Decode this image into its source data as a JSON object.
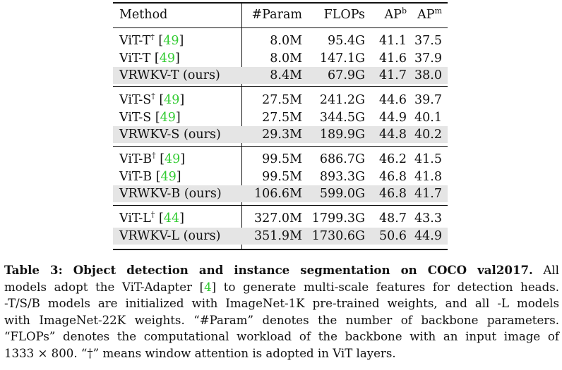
{
  "header": {
    "method": "Method",
    "param": "#Param",
    "flops": "FLOPs",
    "ap": "AP",
    "ap_b_sup": "b",
    "ap_m_sup": "m"
  },
  "groups": [
    {
      "rows": [
        {
          "name": "ViT-T",
          "dagger": "†",
          "ref": "49",
          "param": "8.0M",
          "flops": "95.4G",
          "apb": "41.1",
          "apm": "37.5",
          "ours": false
        },
        {
          "name": "ViT-T",
          "dagger": "",
          "ref": "49",
          "param": "8.0M",
          "flops": "147.1G",
          "apb": "41.6",
          "apm": "37.9",
          "ours": false
        },
        {
          "name": "VRWKV-T (ours)",
          "dagger": "",
          "ref": "",
          "param": "8.4M",
          "flops": "67.9G",
          "apb": "41.7",
          "apm": "38.0",
          "ours": true
        }
      ]
    },
    {
      "rows": [
        {
          "name": "ViT-S",
          "dagger": "†",
          "ref": "49",
          "param": "27.5M",
          "flops": "241.2G",
          "apb": "44.6",
          "apm": "39.7",
          "ours": false
        },
        {
          "name": "ViT-S",
          "dagger": "",
          "ref": "49",
          "param": "27.5M",
          "flops": "344.5G",
          "apb": "44.9",
          "apm": "40.1",
          "ours": false
        },
        {
          "name": "VRWKV-S (ours)",
          "dagger": "",
          "ref": "",
          "param": "29.3M",
          "flops": "189.9G",
          "apb": "44.8",
          "apm": "40.2",
          "ours": true
        }
      ]
    },
    {
      "rows": [
        {
          "name": "ViT-B",
          "dagger": "†",
          "ref": "49",
          "param": "99.5M",
          "flops": "686.7G",
          "apb": "46.2",
          "apm": "41.5",
          "ours": false
        },
        {
          "name": "ViT-B",
          "dagger": "",
          "ref": "49",
          "param": "99.5M",
          "flops": "893.3G",
          "apb": "46.8",
          "apm": "41.8",
          "ours": false
        },
        {
          "name": "VRWKV-B (ours)",
          "dagger": "",
          "ref": "",
          "param": "106.6M",
          "flops": "599.0G",
          "apb": "46.8",
          "apm": "41.7",
          "ours": true
        }
      ]
    },
    {
      "rows": [
        {
          "name": "ViT-L",
          "dagger": "†",
          "ref": "44",
          "param": "327.0M",
          "flops": "1799.3G",
          "apb": "48.7",
          "apm": "43.3",
          "ours": false
        },
        {
          "name": "VRWKV-L (ours)",
          "dagger": "",
          "ref": "",
          "param": "351.9M",
          "flops": "1730.6G",
          "apb": "50.6",
          "apm": "44.9",
          "ours": true
        }
      ]
    }
  ],
  "caption": {
    "label": "Table 3:",
    "title": " Object detection and instance segmentation on COCO val2017.",
    "lines": [
      " All",
      "models adopt the ViT-Adapter [",
      "4",
      "] to generate multi-scale features for detection heads.",
      "-T/S/B models are initialized with ImageNet-1K pre-trained weights, and all -L models",
      "with ImageNet-22K weights. “#Param” denotes the number of backbone parameters.",
      "“FLOPs” denotes the computational workload of the backbone with an input image of",
      "1333 × 800. “†” means window attention is adopted in ViT layers."
    ]
  }
}
